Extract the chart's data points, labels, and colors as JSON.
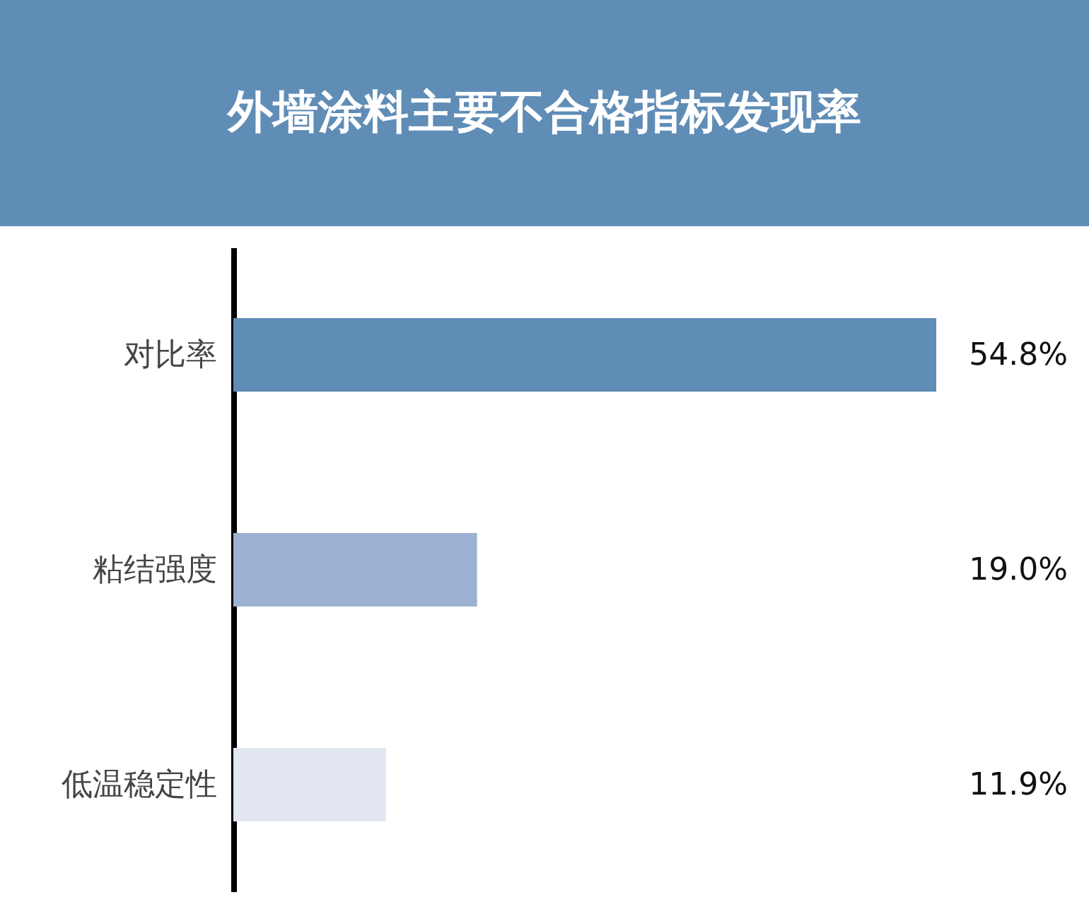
{
  "chart_data": {
    "type": "bar",
    "orientation": "horizontal",
    "title": "外墙涂料主要不合格指标发现率",
    "categories": [
      "对比率",
      "粘结强度",
      "低温稳定性"
    ],
    "values": [
      54.8,
      19.0,
      11.9
    ],
    "colors": [
      "#5f8db6",
      "#9cb2d2",
      "#e2e7f1"
    ],
    "value_labels": [
      "54.8%",
      "19.0%",
      "11.9%"
    ],
    "grid": false,
    "legend": false
  }
}
